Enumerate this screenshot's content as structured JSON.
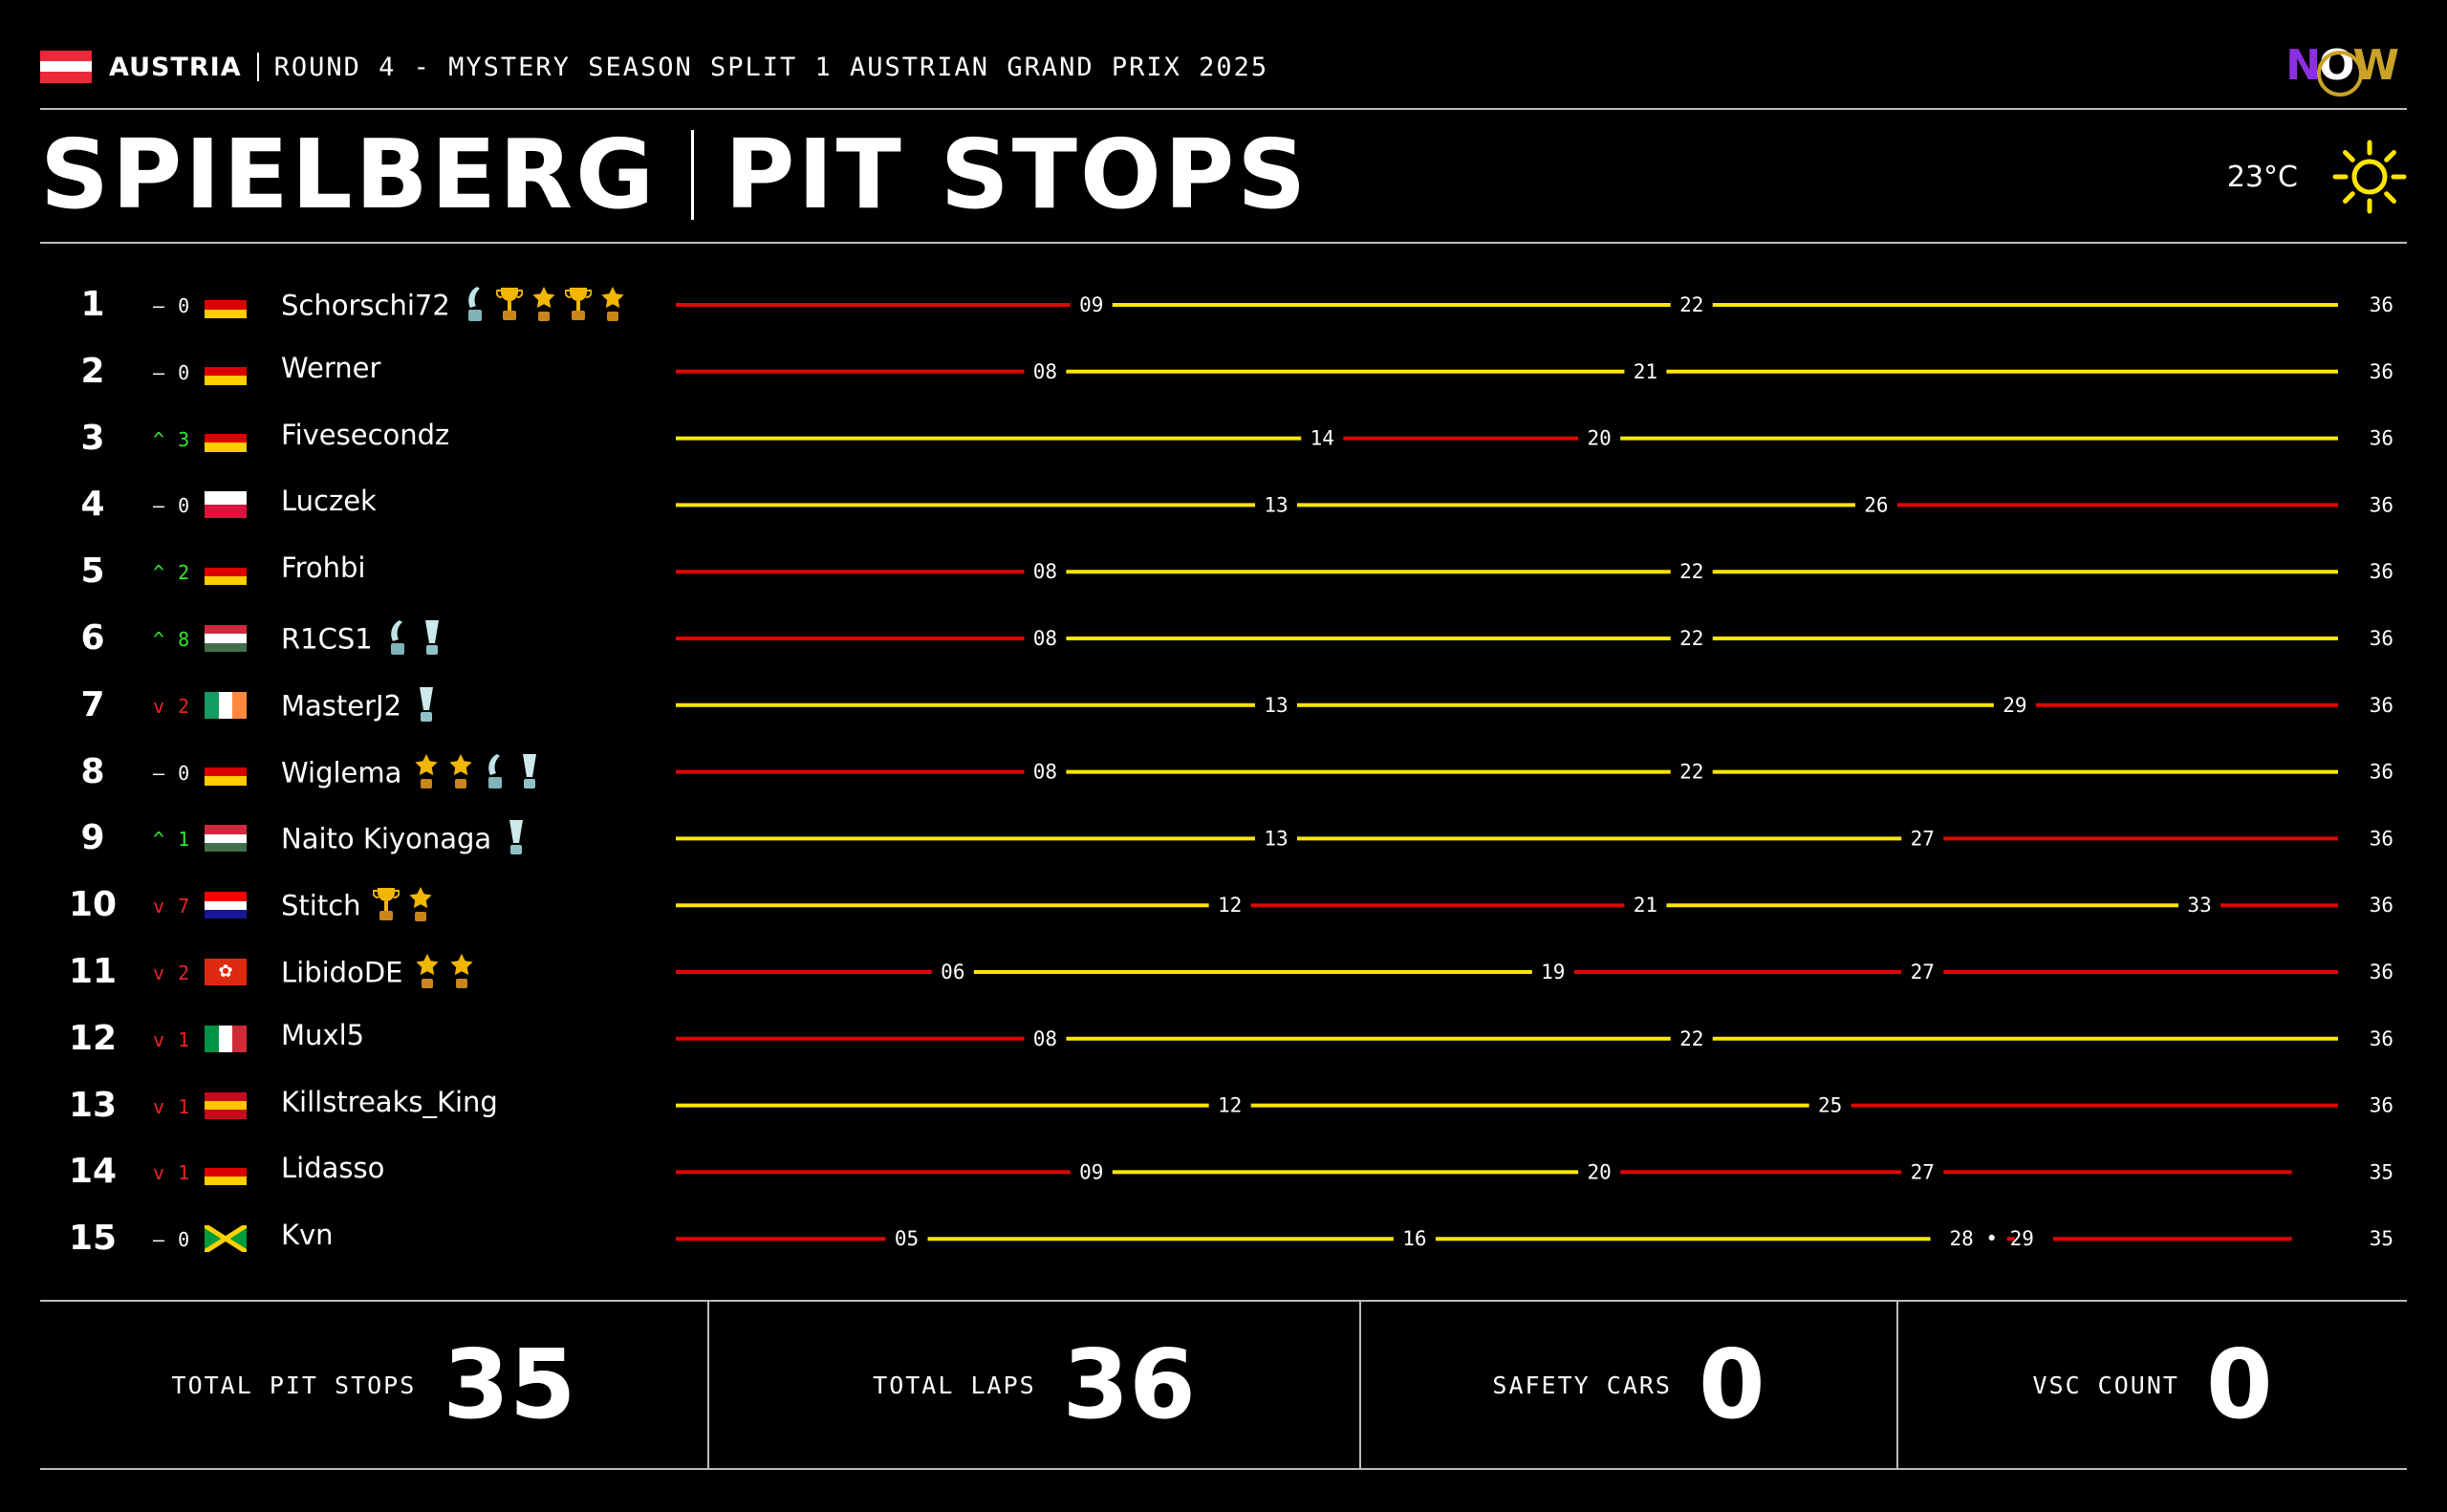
{
  "header": {
    "country": "AUSTRIA",
    "round_title": "ROUND 4 - MYSTERY SEASON SPLIT 1 AUSTRIAN GRAND PRIX 2025",
    "logo_text": "NOW",
    "track": "SPIELBERG",
    "section": "PIT STOPS",
    "temperature": "23°C",
    "weather_icon": "sun-icon",
    "country_flag": [
      "#ed2939",
      "#ffffff",
      "#ed2939"
    ]
  },
  "colors": {
    "stint_red": "#e10600",
    "stint_yellow": "#ffe600",
    "up": "#2ee82e",
    "down": "#e32626",
    "same": "#ffffff"
  },
  "chart_data": {
    "type": "bar",
    "title": "PIT STOPS",
    "x_unit": "laps",
    "xlim": [
      0,
      36
    ],
    "rows": [
      {
        "position": "1",
        "change": "0",
        "direction": "same",
        "flag": [
          "#000000",
          "#dd0000",
          "#ffce00"
        ],
        "driver": "Schorschi72",
        "trophies": [
          "trophy-silver",
          "trophy-gold",
          "trophy-star",
          "trophy-gold",
          "trophy-star"
        ],
        "stints": [
          {
            "compound": "red",
            "end": 9
          },
          {
            "compound": "yellow",
            "end": 22
          },
          {
            "compound": "yellow",
            "end": 36
          }
        ],
        "stop_labels": [
          "09",
          "22"
        ],
        "final_lap": "36"
      },
      {
        "position": "2",
        "change": "0",
        "direction": "same",
        "flag": [
          "#000000",
          "#dd0000",
          "#ffce00"
        ],
        "driver": "Werner",
        "trophies": [],
        "stints": [
          {
            "compound": "red",
            "end": 8
          },
          {
            "compound": "yellow",
            "end": 21
          },
          {
            "compound": "yellow",
            "end": 36
          }
        ],
        "stop_labels": [
          "08",
          "21"
        ],
        "final_lap": "36"
      },
      {
        "position": "3",
        "change": "3",
        "direction": "up",
        "flag": [
          "#000000",
          "#dd0000",
          "#ffce00"
        ],
        "driver": "Fivesecondz",
        "trophies": [],
        "stints": [
          {
            "compound": "yellow",
            "end": 14
          },
          {
            "compound": "red",
            "end": 20
          },
          {
            "compound": "yellow",
            "end": 36
          }
        ],
        "stop_labels": [
          "14",
          "20"
        ],
        "final_lap": "36"
      },
      {
        "position": "4",
        "change": "0",
        "direction": "same",
        "flag": [
          "#ffffff",
          "#dc143c"
        ],
        "driver": "Luczek",
        "trophies": [],
        "stints": [
          {
            "compound": "yellow",
            "end": 13
          },
          {
            "compound": "yellow",
            "end": 26
          },
          {
            "compound": "red",
            "end": 36
          }
        ],
        "stop_labels": [
          "13",
          "26"
        ],
        "final_lap": "36"
      },
      {
        "position": "5",
        "change": "2",
        "direction": "up",
        "flag": [
          "#000000",
          "#dd0000",
          "#ffce00"
        ],
        "driver": "Frohbi",
        "trophies": [],
        "stints": [
          {
            "compound": "red",
            "end": 8
          },
          {
            "compound": "yellow",
            "end": 22
          },
          {
            "compound": "yellow",
            "end": 36
          }
        ],
        "stop_labels": [
          "08",
          "22"
        ],
        "final_lap": "36"
      },
      {
        "position": "6",
        "change": "8",
        "direction": "up",
        "flag": [
          "#cd2a3e",
          "#ffffff",
          "#436f4d"
        ],
        "driver": "R1CS1",
        "trophies": [
          "trophy-silver",
          "trophy-cup"
        ],
        "stints": [
          {
            "compound": "red",
            "end": 8
          },
          {
            "compound": "yellow",
            "end": 22
          },
          {
            "compound": "yellow",
            "end": 36
          }
        ],
        "stop_labels": [
          "08",
          "22"
        ],
        "final_lap": "36"
      },
      {
        "position": "7",
        "change": "2",
        "direction": "down",
        "flag": [
          "#169b62",
          "#ffffff",
          "#ff883e"
        ],
        "flag_vertical": true,
        "driver": "MasterJ2",
        "trophies": [
          "trophy-cup"
        ],
        "stints": [
          {
            "compound": "yellow",
            "end": 13
          },
          {
            "compound": "yellow",
            "end": 29
          },
          {
            "compound": "red",
            "end": 36
          }
        ],
        "stop_labels": [
          "13",
          "29"
        ],
        "final_lap": "36"
      },
      {
        "position": "8",
        "change": "0",
        "direction": "same",
        "flag": [
          "#000000",
          "#dd0000",
          "#ffce00"
        ],
        "driver": "Wiglema",
        "trophies": [
          "trophy-star",
          "trophy-star",
          "trophy-silver",
          "trophy-cup"
        ],
        "stints": [
          {
            "compound": "red",
            "end": 8
          },
          {
            "compound": "yellow",
            "end": 22
          },
          {
            "compound": "yellow",
            "end": 36
          }
        ],
        "stop_labels": [
          "08",
          "22"
        ],
        "final_lap": "36"
      },
      {
        "position": "9",
        "change": "1",
        "direction": "up",
        "flag": [
          "#cd2a3e",
          "#ffffff",
          "#436f4d"
        ],
        "driver": "Naito Kiyonaga",
        "trophies": [
          "trophy-cup"
        ],
        "stints": [
          {
            "compound": "yellow",
            "end": 13
          },
          {
            "compound": "yellow",
            "end": 27
          },
          {
            "compound": "red",
            "end": 36
          }
        ],
        "stop_labels": [
          "13",
          "27"
        ],
        "final_lap": "36"
      },
      {
        "position": "10",
        "change": "7",
        "direction": "down",
        "flag": [
          "#ff0000",
          "#ffffff",
          "#171796"
        ],
        "driver": "Stitch",
        "trophies": [
          "trophy-gold",
          "trophy-star"
        ],
        "stints": [
          {
            "compound": "yellow",
            "end": 12
          },
          {
            "compound": "red",
            "end": 21
          },
          {
            "compound": "yellow",
            "end": 33
          },
          {
            "compound": "red",
            "end": 36
          }
        ],
        "stop_labels": [
          "12",
          "21",
          "33"
        ],
        "final_lap": "36"
      },
      {
        "position": "11",
        "change": "2",
        "direction": "down",
        "flag": [
          "#de2910"
        ],
        "flag_emblem": true,
        "driver": "LibidoDE",
        "trophies": [
          "trophy-star",
          "trophy-star"
        ],
        "stints": [
          {
            "compound": "red",
            "end": 6
          },
          {
            "compound": "yellow",
            "end": 19
          },
          {
            "compound": "red",
            "end": 27
          },
          {
            "compound": "red",
            "end": 36
          }
        ],
        "stop_labels": [
          "06",
          "19",
          "27"
        ],
        "final_lap": "36"
      },
      {
        "position": "12",
        "change": "1",
        "direction": "down",
        "flag": [
          "#009246",
          "#ffffff",
          "#ce2b37"
        ],
        "flag_vertical": true,
        "driver": "Muxl5",
        "trophies": [],
        "stints": [
          {
            "compound": "red",
            "end": 8
          },
          {
            "compound": "yellow",
            "end": 22
          },
          {
            "compound": "yellow",
            "end": 36
          }
        ],
        "stop_labels": [
          "08",
          "22"
        ],
        "final_lap": "36"
      },
      {
        "position": "13",
        "change": "1",
        "direction": "down",
        "flag": [
          "#c60b1e",
          "#ffc400",
          "#c60b1e"
        ],
        "driver": "Killstreaks_King",
        "trophies": [],
        "stints": [
          {
            "compound": "yellow",
            "end": 12
          },
          {
            "compound": "yellow",
            "end": 25
          },
          {
            "compound": "red",
            "end": 36
          }
        ],
        "stop_labels": [
          "12",
          "25"
        ],
        "final_lap": "36"
      },
      {
        "position": "14",
        "change": "1",
        "direction": "down",
        "flag": [
          "#000000",
          "#dd0000",
          "#ffce00"
        ],
        "driver": "Lidasso",
        "trophies": [],
        "stints": [
          {
            "compound": "red",
            "end": 9
          },
          {
            "compound": "yellow",
            "end": 20
          },
          {
            "compound": "red",
            "end": 27
          },
          {
            "compound": "red",
            "end": 35
          }
        ],
        "stop_labels": [
          "09",
          "20",
          "27"
        ],
        "final_lap": "35"
      },
      {
        "position": "15",
        "change": "0",
        "direction": "same",
        "flag": [
          "#009b3a",
          "#fed100",
          "#000000"
        ],
        "flag_jamaica": true,
        "driver": "Kvn",
        "trophies": [],
        "stints": [
          {
            "compound": "red",
            "end": 5
          },
          {
            "compound": "yellow",
            "end": 16
          },
          {
            "compound": "yellow",
            "end": 28
          },
          {
            "compound": "red",
            "end": 29
          },
          {
            "compound": "red",
            "end": 35
          }
        ],
        "stop_labels": [
          "05",
          "16",
          "28 • 29"
        ],
        "final_lap": "35"
      }
    ]
  },
  "stats": [
    {
      "label": "TOTAL PIT STOPS",
      "value": "35"
    },
    {
      "label": "TOTAL LAPS",
      "value": "36"
    },
    {
      "label": "SAFETY CARS",
      "value": "0"
    },
    {
      "label": "VSC COUNT",
      "value": "0"
    }
  ]
}
